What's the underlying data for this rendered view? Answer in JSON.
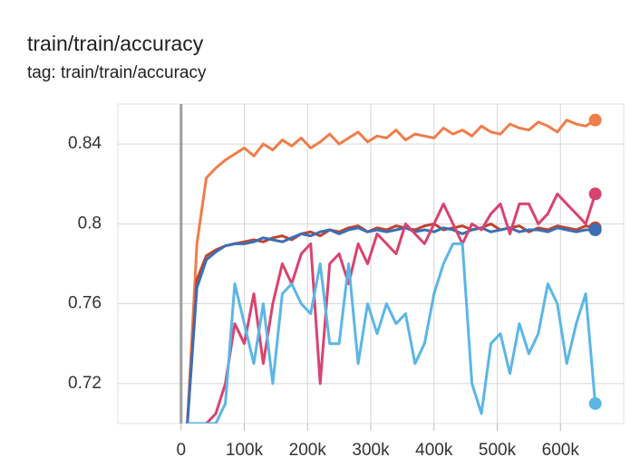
{
  "chart_data": {
    "type": "line",
    "title": "train/train/accuracy",
    "subtitle": "tag: train/train/accuracy",
    "x": [
      10000,
      25000,
      40000,
      55000,
      70000,
      85000,
      100000,
      115000,
      130000,
      145000,
      160000,
      175000,
      190000,
      205000,
      220000,
      235000,
      250000,
      265000,
      280000,
      295000,
      310000,
      325000,
      340000,
      355000,
      370000,
      385000,
      400000,
      415000,
      430000,
      445000,
      460000,
      475000,
      490000,
      505000,
      520000,
      535000,
      550000,
      565000,
      580000,
      595000,
      610000,
      625000,
      640000,
      655000
    ],
    "series": [
      {
        "color": "#ef7d4a",
        "values": [
          0.7,
          0.79,
          0.823,
          0.828,
          0.832,
          0.835,
          0.838,
          0.834,
          0.84,
          0.837,
          0.842,
          0.839,
          0.843,
          0.838,
          0.841,
          0.845,
          0.84,
          0.843,
          0.846,
          0.841,
          0.844,
          0.843,
          0.847,
          0.842,
          0.845,
          0.844,
          0.843,
          0.848,
          0.845,
          0.847,
          0.844,
          0.849,
          0.846,
          0.845,
          0.85,
          0.848,
          0.847,
          0.851,
          0.849,
          0.846,
          0.852,
          0.85,
          0.849,
          0.852
        ]
      },
      {
        "color": "#c0432e",
        "values": [
          0.7,
          0.772,
          0.784,
          0.787,
          0.789,
          0.79,
          0.791,
          0.792,
          0.791,
          0.793,
          0.794,
          0.792,
          0.795,
          0.796,
          0.794,
          0.797,
          0.796,
          0.798,
          0.799,
          0.796,
          0.798,
          0.797,
          0.799,
          0.798,
          0.797,
          0.799,
          0.8,
          0.797,
          0.798,
          0.799,
          0.797,
          0.798,
          0.8,
          0.797,
          0.798,
          0.799,
          0.796,
          0.798,
          0.797,
          0.799,
          0.798,
          0.797,
          0.799,
          0.798
        ]
      },
      {
        "color": "#3a6fb5",
        "values": [
          0.7,
          0.768,
          0.782,
          0.786,
          0.789,
          0.79,
          0.79,
          0.791,
          0.793,
          0.792,
          0.791,
          0.793,
          0.795,
          0.794,
          0.796,
          0.797,
          0.795,
          0.797,
          0.798,
          0.796,
          0.797,
          0.796,
          0.797,
          0.798,
          0.796,
          0.797,
          0.796,
          0.798,
          0.797,
          0.795,
          0.797,
          0.798,
          0.796,
          0.797,
          0.798,
          0.796,
          0.797,
          0.797,
          0.796,
          0.798,
          0.797,
          0.796,
          0.797,
          0.797
        ]
      },
      {
        "color": "#d9436f",
        "values": [
          0.7,
          0.7,
          0.7,
          0.705,
          0.72,
          0.75,
          0.74,
          0.765,
          0.73,
          0.76,
          0.78,
          0.77,
          0.785,
          0.79,
          0.72,
          0.78,
          0.785,
          0.77,
          0.79,
          0.78,
          0.795,
          0.79,
          0.785,
          0.8,
          0.795,
          0.79,
          0.8,
          0.81,
          0.8,
          0.79,
          0.8,
          0.797,
          0.805,
          0.81,
          0.795,
          0.81,
          0.81,
          0.8,
          0.805,
          0.815,
          0.81,
          0.805,
          0.8,
          0.815
        ]
      },
      {
        "color": "#5bb6e6",
        "values": [
          0.7,
          0.7,
          0.7,
          0.7,
          0.71,
          0.77,
          0.75,
          0.73,
          0.76,
          0.72,
          0.765,
          0.77,
          0.76,
          0.755,
          0.78,
          0.74,
          0.74,
          0.78,
          0.73,
          0.76,
          0.745,
          0.76,
          0.75,
          0.755,
          0.73,
          0.74,
          0.765,
          0.78,
          0.79,
          0.79,
          0.72,
          0.705,
          0.74,
          0.745,
          0.725,
          0.75,
          0.735,
          0.745,
          0.77,
          0.76,
          0.73,
          0.75,
          0.765,
          0.71
        ]
      }
    ],
    "xlim": [
      -100000,
      700000
    ],
    "xticks": [
      {
        "value": 0,
        "label": "0"
      },
      {
        "value": 100000,
        "label": "100k"
      },
      {
        "value": 200000,
        "label": "200k"
      },
      {
        "value": 300000,
        "label": "300k"
      },
      {
        "value": 400000,
        "label": "400k"
      },
      {
        "value": 500000,
        "label": "500k"
      },
      {
        "value": 600000,
        "label": "600k"
      }
    ],
    "ylim": [
      0.7,
      0.86
    ],
    "yticks": [
      0.72,
      0.76,
      0.8,
      0.84
    ],
    "grid": true
  }
}
